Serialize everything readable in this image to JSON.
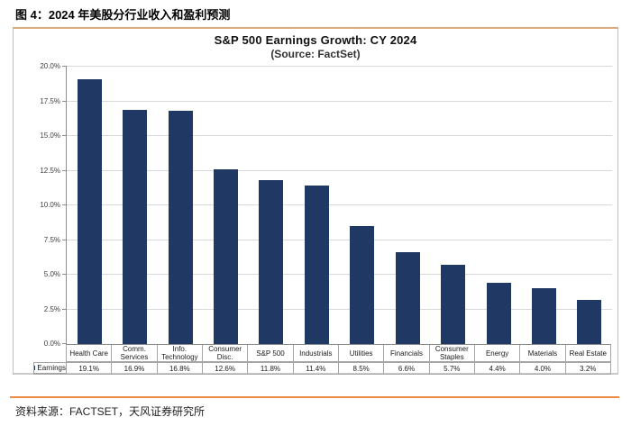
{
  "document": {
    "caption": "图 4：2024 年美股分行业收入和盈利预测",
    "source_note": "资料来源：FACTSET，天风证券研究所"
  },
  "chart_data": {
    "type": "bar",
    "title": "S&P 500 Earnings Growth: CY 2024",
    "subtitle": "(Source: FactSet)",
    "legend": [
      {
        "label": "Earnings",
        "color": "#1f3864"
      }
    ],
    "legend_position": "data-table-row-left",
    "categories": [
      "Health Care",
      "Comm. Services",
      "Info. Technology",
      "Consumer Disc.",
      "S&P 500",
      "Industrials",
      "Utilities",
      "Financials",
      "Consumer Staples",
      "Energy",
      "Materials",
      "Real Estate"
    ],
    "series": [
      {
        "name": "Earnings",
        "values": [
          19.1,
          16.9,
          16.8,
          12.6,
          11.8,
          11.4,
          8.5,
          6.6,
          5.7,
          4.4,
          4.0,
          3.2
        ]
      }
    ],
    "value_labels": [
      "19.1%",
      "16.9%",
      "16.8%",
      "12.6%",
      "11.8%",
      "11.4%",
      "8.5%",
      "6.6%",
      "5.7%",
      "4.4%",
      "4.0%",
      "3.2%"
    ],
    "xlabel": "",
    "ylabel": "",
    "ylim": [
      0,
      20
    ],
    "ytick_values": [
      0,
      2.5,
      5,
      7.5,
      10,
      12.5,
      15,
      17.5,
      20
    ],
    "ytick_labels": [
      "0.0%",
      "2.5%",
      "5.0%",
      "7.5%",
      "10.0%",
      "12.5%",
      "15.0%",
      "17.5%",
      "20.0%"
    ],
    "grid": true,
    "data_table_shown": true,
    "colors": {
      "bar": "#1f3864",
      "gridline": "#d9d9d9",
      "axis": "#8c8c8c",
      "table_border": "#a6a6a6",
      "box_border": "#bfbfbf",
      "box_top_accent": "#d9a87c",
      "source_rule": "#ed8a45"
    }
  }
}
